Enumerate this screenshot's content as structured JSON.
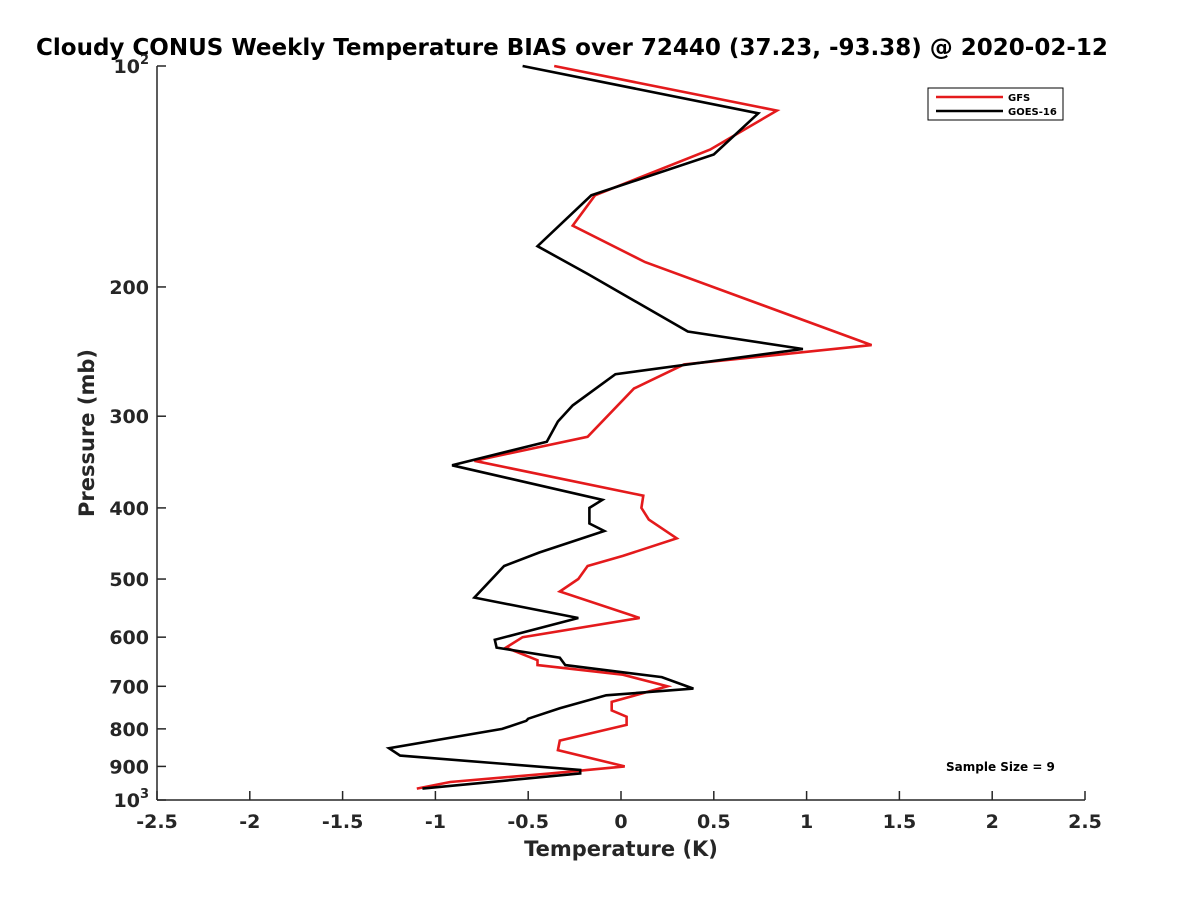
{
  "chart_data": {
    "type": "line",
    "title": "Cloudy CONUS Weekly Temperature BIAS over 72440 (37.23, -93.38) @ 2020-02-12",
    "xlabel": "Temperature (K)",
    "ylabel": "Pressure (mb)",
    "xlim": [
      -2.5,
      2.5
    ],
    "ylim": [
      100,
      1000
    ],
    "y_scale": "log",
    "y_reversed": true,
    "grid": false,
    "legend": "top-right",
    "x_ticks": [
      {
        "value": -2.5,
        "label": "-2.5"
      },
      {
        "value": -2,
        "label": "-2"
      },
      {
        "value": -1.5,
        "label": "-1.5"
      },
      {
        "value": -1,
        "label": "-1"
      },
      {
        "value": -0.5,
        "label": "-0.5"
      },
      {
        "value": 0,
        "label": "0"
      },
      {
        "value": 0.5,
        "label": "0.5"
      },
      {
        "value": 1,
        "label": "1"
      },
      {
        "value": 1.5,
        "label": "1.5"
      },
      {
        "value": 2,
        "label": "2"
      },
      {
        "value": 2.5,
        "label": "2.5"
      }
    ],
    "y_ticks": [
      {
        "value": 100,
        "base": "10",
        "exp": "2"
      },
      {
        "value": 200,
        "base": "200",
        "exp": ""
      },
      {
        "value": 300,
        "base": "300",
        "exp": ""
      },
      {
        "value": 400,
        "base": "400",
        "exp": ""
      },
      {
        "value": 500,
        "base": "500",
        "exp": ""
      },
      {
        "value": 600,
        "base": "600",
        "exp": ""
      },
      {
        "value": 700,
        "base": "700",
        "exp": ""
      },
      {
        "value": 800,
        "base": "800",
        "exp": ""
      },
      {
        "value": 900,
        "base": "900",
        "exp": ""
      },
      {
        "value": 1000,
        "base": "10",
        "exp": "3"
      }
    ],
    "series": [
      {
        "name": "GFS",
        "color": "#e41a1c",
        "points": [
          [
            -0.36,
            100
          ],
          [
            0.84,
            115
          ],
          [
            0.48,
            130
          ],
          [
            -0.14,
            150
          ],
          [
            -0.26,
            165
          ],
          [
            0.13,
            185
          ],
          [
            1.35,
            240
          ],
          [
            0.34,
            255
          ],
          [
            0.07,
            275
          ],
          [
            -0.18,
            320
          ],
          [
            -0.79,
            345
          ],
          [
            0.12,
            385
          ],
          [
            0.11,
            400
          ],
          [
            0.15,
            415
          ],
          [
            0.3,
            440
          ],
          [
            0.01,
            465
          ],
          [
            -0.18,
            480
          ],
          [
            -0.23,
            500
          ],
          [
            -0.33,
            520
          ],
          [
            0.1,
            565
          ],
          [
            -0.53,
            600
          ],
          [
            -0.62,
            620
          ],
          [
            -0.45,
            645
          ],
          [
            -0.45,
            655
          ],
          [
            0.01,
            675
          ],
          [
            0.25,
            700
          ],
          [
            -0.05,
            735
          ],
          [
            -0.05,
            755
          ],
          [
            0.03,
            770
          ],
          [
            0.03,
            790
          ],
          [
            -0.33,
            830
          ],
          [
            -0.34,
            855
          ],
          [
            0.02,
            900
          ],
          [
            -0.38,
            920
          ],
          [
            -0.92,
            945
          ],
          [
            -1.1,
            965
          ]
        ]
      },
      {
        "name": "GOES-16",
        "color": "#000000",
        "points": [
          [
            -0.53,
            100
          ],
          [
            0.74,
            116
          ],
          [
            0.5,
            132
          ],
          [
            -0.16,
            150
          ],
          [
            -0.45,
            176
          ],
          [
            -0.18,
            192
          ],
          [
            0.36,
            230
          ],
          [
            0.98,
            243
          ],
          [
            -0.03,
            263
          ],
          [
            -0.26,
            290
          ],
          [
            -0.34,
            305
          ],
          [
            -0.4,
            325
          ],
          [
            -0.91,
            350
          ],
          [
            -0.1,
            390
          ],
          [
            -0.17,
            400
          ],
          [
            -0.17,
            420
          ],
          [
            -0.09,
            430
          ],
          [
            -0.44,
            460
          ],
          [
            -0.63,
            480
          ],
          [
            -0.79,
            530
          ],
          [
            -0.23,
            565
          ],
          [
            -0.68,
            605
          ],
          [
            -0.67,
            620
          ],
          [
            -0.33,
            640
          ],
          [
            -0.3,
            655
          ],
          [
            0.22,
            680
          ],
          [
            0.39,
            705
          ],
          [
            -0.08,
            720
          ],
          [
            -0.33,
            750
          ],
          [
            -0.5,
            775
          ],
          [
            -0.51,
            780
          ],
          [
            -0.64,
            800
          ],
          [
            -1.25,
            850
          ],
          [
            -1.19,
            870
          ],
          [
            -0.22,
            910
          ],
          [
            -0.22,
            920
          ],
          [
            -1.07,
            965
          ]
        ]
      }
    ],
    "annotations": [
      {
        "text": "Sample Size = 9",
        "position": "bottom-right"
      }
    ]
  }
}
